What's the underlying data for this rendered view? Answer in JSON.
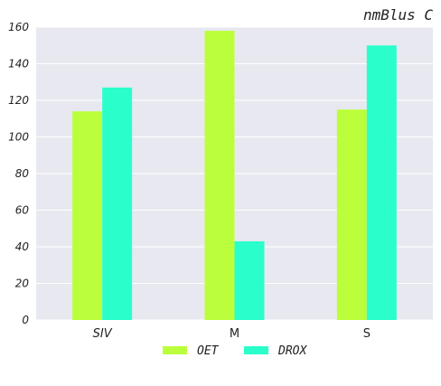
{
  "chart_data": {
    "type": "bar",
    "title": "nmBlus C",
    "categories": [
      "SIV",
      "M",
      "S"
    ],
    "series": [
      {
        "name": "OET",
        "values": [
          114,
          158,
          115
        ],
        "color": "#bbff3c"
      },
      {
        "name": "DROX",
        "values": [
          127,
          43,
          150
        ],
        "color": "#2affcc"
      }
    ],
    "ylim": [
      0,
      160
    ],
    "yticks": [
      0,
      20,
      40,
      60,
      80,
      100,
      120,
      140,
      160
    ],
    "xlabel": "",
    "ylabel": "",
    "grid": true,
    "legend_position": "bottom-center",
    "plot_background": "#e8e8f0"
  }
}
